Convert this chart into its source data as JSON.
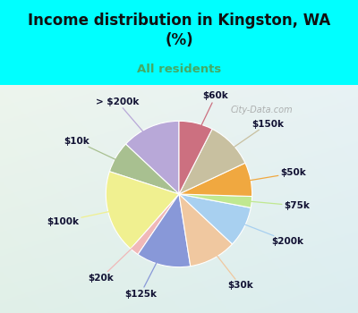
{
  "title": "Income distribution in Kingston, WA\n(%)",
  "subtitle": "All residents",
  "title_color": "#111111",
  "subtitle_color": "#44aa66",
  "background_top": "#00ffff",
  "background_chart_tl": "#e8f5ee",
  "background_chart_br": "#c8eee8",
  "labels": [
    "> $200k",
    "$10k",
    "$100k",
    "$20k",
    "$125k",
    "$30k",
    "$200k",
    "$75k",
    "$50k",
    "$150k",
    "$60k"
  ],
  "values": [
    13.0,
    7.0,
    18.5,
    2.0,
    12.0,
    10.5,
    9.0,
    2.5,
    7.5,
    10.5,
    7.5
  ],
  "colors": [
    "#b8a8d8",
    "#a8c090",
    "#f0f090",
    "#f0b8b8",
    "#8898d8",
    "#f0c8a0",
    "#a8d0f0",
    "#c0e890",
    "#f0a840",
    "#c8c0a0",
    "#cc7080"
  ],
  "startangle": 90,
  "wedge_linewidth": 0.8,
  "wedge_linecolor": "#ffffff",
  "label_fontsize": 7.5,
  "label_color": "#111133",
  "line_color": "#aaaaaa",
  "watermark": "City-Data.com"
}
